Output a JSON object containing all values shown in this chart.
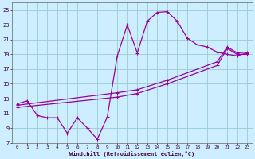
{
  "xlabel": "Windchill (Refroidissement éolien,°C)",
  "background_color": "#cceeff",
  "grid_color": "#99cccc",
  "line_color": "#990099",
  "xlim": [
    -0.5,
    23.5
  ],
  "ylim": [
    7,
    26
  ],
  "yticks": [
    7,
    9,
    11,
    13,
    15,
    17,
    19,
    21,
    23,
    25
  ],
  "xticks": [
    0,
    1,
    2,
    3,
    4,
    5,
    6,
    7,
    8,
    9,
    10,
    11,
    12,
    13,
    14,
    15,
    16,
    17,
    18,
    19,
    20,
    21,
    22,
    23
  ],
  "line1_x": [
    0,
    1,
    2,
    3,
    4,
    5,
    6,
    7,
    8,
    9,
    10,
    11,
    12,
    13,
    14,
    15,
    16,
    17,
    18,
    19,
    20,
    21,
    22,
    23
  ],
  "line1_y": [
    12.3,
    12.7,
    10.7,
    10.4,
    10.4,
    8.3,
    10.4,
    9.0,
    7.5,
    10.5,
    18.8,
    23.0,
    19.2,
    23.5,
    24.7,
    24.8,
    23.5,
    21.2,
    20.3,
    20.0,
    19.3,
    19.0,
    18.8,
    19.2
  ],
  "line2_x": [
    0,
    10,
    12,
    15,
    20,
    21,
    22,
    23
  ],
  "line2_y": [
    12.1,
    13.8,
    14.2,
    15.5,
    18.0,
    20.0,
    19.2,
    19.3
  ],
  "line3_x": [
    0,
    10,
    12,
    15,
    20,
    21,
    22,
    23
  ],
  "line3_y": [
    11.8,
    13.2,
    13.7,
    15.0,
    17.5,
    19.8,
    19.0,
    19.0
  ]
}
